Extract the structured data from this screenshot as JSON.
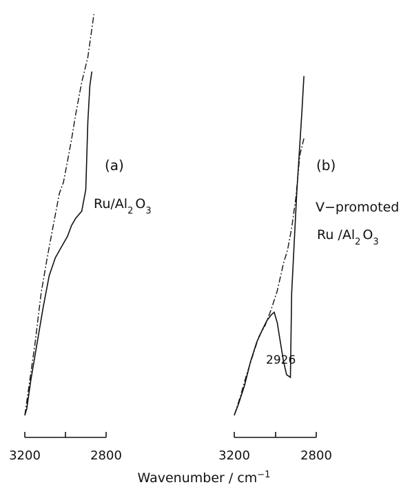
{
  "chart_data": [
    {
      "type": "line",
      "panel_label": "(a)",
      "sample_label": {
        "main": "Ru/Al",
        "sub1": "2",
        "mid": "O",
        "sub2": "3"
      },
      "xlabel": "Wavenumber / cm",
      "xlabel_superscript": "−1",
      "xlim": [
        3200,
        2800
      ],
      "ticks": [
        3200,
        3000,
        2800
      ],
      "tick_labels": [
        "3200",
        "",
        "2800"
      ],
      "series": [
        {
          "style": "solid",
          "color": "#111111",
          "x": [
            3200,
            3190,
            3170,
            3140,
            3110,
            3080,
            3050,
            3020,
            2990,
            2970,
            2950,
            2920,
            2900,
            2890,
            2880,
            2870
          ],
          "y": [
            0.0,
            0.02,
            0.1,
            0.2,
            0.3,
            0.39,
            0.44,
            0.47,
            0.5,
            0.53,
            0.55,
            0.57,
            0.63,
            0.82,
            0.92,
            0.96
          ]
        },
        {
          "style": "dash-dot",
          "color": "#111111",
          "x": [
            3200,
            3180,
            3150,
            3120,
            3090,
            3060,
            3030,
            3010,
            2990,
            2970,
            2950,
            2920,
            2890,
            2860
          ],
          "y": [
            0.0,
            0.08,
            0.2,
            0.34,
            0.44,
            0.53,
            0.62,
            0.65,
            0.71,
            0.77,
            0.84,
            0.93,
            1.0,
            1.12
          ]
        }
      ]
    },
    {
      "type": "line",
      "panel_label": "(b)",
      "sample_label": {
        "line1": "V−promoted",
        "main": "Ru /Al",
        "sub1": "2",
        "mid": "O",
        "sub2": "3"
      },
      "peak_annotation": "2926",
      "xlim": [
        3200,
        2800
      ],
      "ticks": [
        3200,
        3000,
        2800
      ],
      "tick_labels": [
        "3200",
        "",
        "2800"
      ],
      "series": [
        {
          "style": "solid",
          "color": "#111111",
          "x": [
            3200,
            3180,
            3150,
            3120,
            3090,
            3060,
            3040,
            3020,
            3005,
            2990,
            2975,
            2960,
            2945,
            2926,
            2920,
            2910,
            2895,
            2870,
            2860
          ],
          "y": [
            0.0,
            0.04,
            0.11,
            0.2,
            0.27,
            0.32,
            0.35,
            0.37,
            0.38,
            0.34,
            0.27,
            0.2,
            0.15,
            0.14,
            0.45,
            0.6,
            0.82,
            1.12,
            1.25
          ]
        },
        {
          "style": "dash-dot",
          "color": "#111111",
          "x": [
            3200,
            3170,
            3140,
            3110,
            3080,
            3050,
            3020,
            2990,
            2960,
            2940,
            2920,
            2900,
            2880,
            2860
          ],
          "y": [
            0.0,
            0.07,
            0.15,
            0.22,
            0.29,
            0.33,
            0.39,
            0.46,
            0.56,
            0.61,
            0.69,
            0.8,
            0.96,
            1.02
          ]
        }
      ]
    }
  ]
}
